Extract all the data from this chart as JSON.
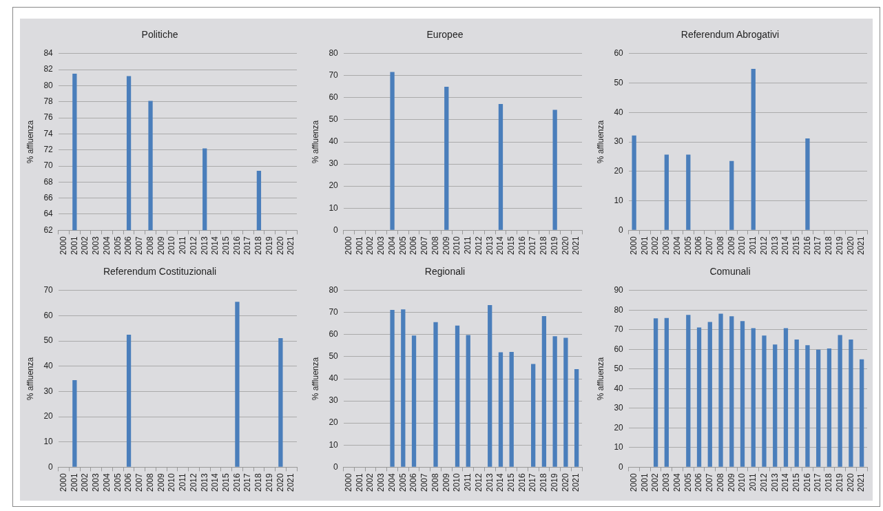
{
  "chart_data": [
    {
      "type": "bar",
      "title": "Politiche",
      "ylabel": "% affluenza",
      "categories": [
        "2000",
        "2001",
        "2002",
        "2003",
        "2004",
        "2005",
        "2006",
        "2007",
        "2008",
        "2009",
        "2010",
        "2011",
        "2012",
        "2013",
        "2014",
        "2015",
        "2016",
        "2017",
        "2018",
        "2019",
        "2020",
        "2021"
      ],
      "values": [
        null,
        81.5,
        null,
        null,
        null,
        null,
        81.2,
        null,
        78.1,
        null,
        null,
        null,
        null,
        72.2,
        null,
        null,
        null,
        null,
        69.4,
        null,
        null,
        null
      ],
      "color": "#4a7ebb",
      "ylim": [
        62,
        84
      ],
      "yticks": [
        62,
        64,
        66,
        68,
        70,
        72,
        74,
        76,
        78,
        80,
        82,
        84
      ],
      "grid": "y"
    },
    {
      "type": "bar",
      "title": "Europee",
      "ylabel": "% affluenza",
      "categories": [
        "2000",
        "2001",
        "2002",
        "2003",
        "2004",
        "2005",
        "2006",
        "2007",
        "2008",
        "2009",
        "2010",
        "2011",
        "2012",
        "2013",
        "2014",
        "2015",
        "2016",
        "2017",
        "2018",
        "2019",
        "2020",
        "2021"
      ],
      "values": [
        null,
        null,
        null,
        null,
        71.7,
        null,
        null,
        null,
        null,
        65.0,
        null,
        null,
        null,
        null,
        57.2,
        null,
        null,
        null,
        null,
        54.5,
        null,
        null
      ],
      "color": "#4a7ebb",
      "ylim": [
        0,
        80
      ],
      "yticks": [
        0,
        10,
        20,
        30,
        40,
        50,
        60,
        70,
        80
      ],
      "grid": "y"
    },
    {
      "type": "bar",
      "title": "Referendum Abrogativi",
      "ylabel": "% affluenza",
      "categories": [
        "2000",
        "2001",
        "2002",
        "2003",
        "2004",
        "2005",
        "2006",
        "2007",
        "2008",
        "2009",
        "2010",
        "2011",
        "2012",
        "2013",
        "2014",
        "2015",
        "2016",
        "2017",
        "2018",
        "2019",
        "2020",
        "2021"
      ],
      "values": [
        32.2,
        null,
        null,
        25.7,
        null,
        25.7,
        null,
        null,
        null,
        23.5,
        null,
        54.8,
        null,
        null,
        null,
        null,
        31.2,
        null,
        null,
        null,
        null,
        null
      ],
      "color": "#4a7ebb",
      "ylim": [
        0,
        60
      ],
      "yticks": [
        0,
        10,
        20,
        30,
        40,
        50,
        60
      ],
      "grid": "y"
    },
    {
      "type": "bar",
      "title": "Referendum Costituzionali",
      "ylabel": "% affluenza",
      "categories": [
        "2000",
        "2001",
        "2002",
        "2003",
        "2004",
        "2005",
        "2006",
        "2007",
        "2008",
        "2009",
        "2010",
        "2011",
        "2012",
        "2013",
        "2014",
        "2015",
        "2016",
        "2017",
        "2018",
        "2019",
        "2020",
        "2021"
      ],
      "values": [
        null,
        34.5,
        null,
        null,
        null,
        null,
        52.5,
        null,
        null,
        null,
        null,
        null,
        null,
        null,
        null,
        null,
        65.5,
        null,
        null,
        null,
        51.1,
        null
      ],
      "color": "#4a7ebb",
      "ylim": [
        0,
        70
      ],
      "yticks": [
        0,
        10,
        20,
        30,
        40,
        50,
        60,
        70
      ],
      "grid": "y"
    },
    {
      "type": "bar",
      "title": "Regionali",
      "ylabel": "% affluenza",
      "categories": [
        "2000",
        "2001",
        "2002",
        "2003",
        "2004",
        "2005",
        "2006",
        "2007",
        "2008",
        "2009",
        "2010",
        "2011",
        "2012",
        "2013",
        "2014",
        "2015",
        "2016",
        "2017",
        "2018",
        "2019",
        "2020",
        "2021"
      ],
      "values": [
        null,
        null,
        null,
        null,
        71.2,
        71.4,
        59.6,
        null,
        65.7,
        null,
        64.1,
        59.8,
        null,
        73.4,
        52.0,
        52.2,
        null,
        46.7,
        68.4,
        59.3,
        58.6,
        44.4
      ],
      "color": "#4a7ebb",
      "ylim": [
        0,
        80
      ],
      "yticks": [
        0,
        10,
        20,
        30,
        40,
        50,
        60,
        70,
        80
      ],
      "grid": "y"
    },
    {
      "type": "bar",
      "title": "Comunali",
      "ylabel": "% affluenza",
      "categories": [
        "2000",
        "2001",
        "2002",
        "2003",
        "2004",
        "2005",
        "2006",
        "2007",
        "2008",
        "2009",
        "2010",
        "2011",
        "2012",
        "2013",
        "2014",
        "2015",
        "2016",
        "2017",
        "2018",
        "2019",
        "2020",
        "2021"
      ],
      "values": [
        null,
        null,
        75.8,
        76.0,
        null,
        77.6,
        71.2,
        74.0,
        78.2,
        76.9,
        74.4,
        70.8,
        67.0,
        62.5,
        70.8,
        65.0,
        62.1,
        59.8,
        60.5,
        67.3,
        65.0,
        54.9
      ],
      "color": "#4a7ebb",
      "ylim": [
        0,
        90
      ],
      "yticks": [
        0,
        10,
        20,
        30,
        40,
        50,
        60,
        70,
        80,
        90
      ],
      "grid": "y"
    }
  ]
}
